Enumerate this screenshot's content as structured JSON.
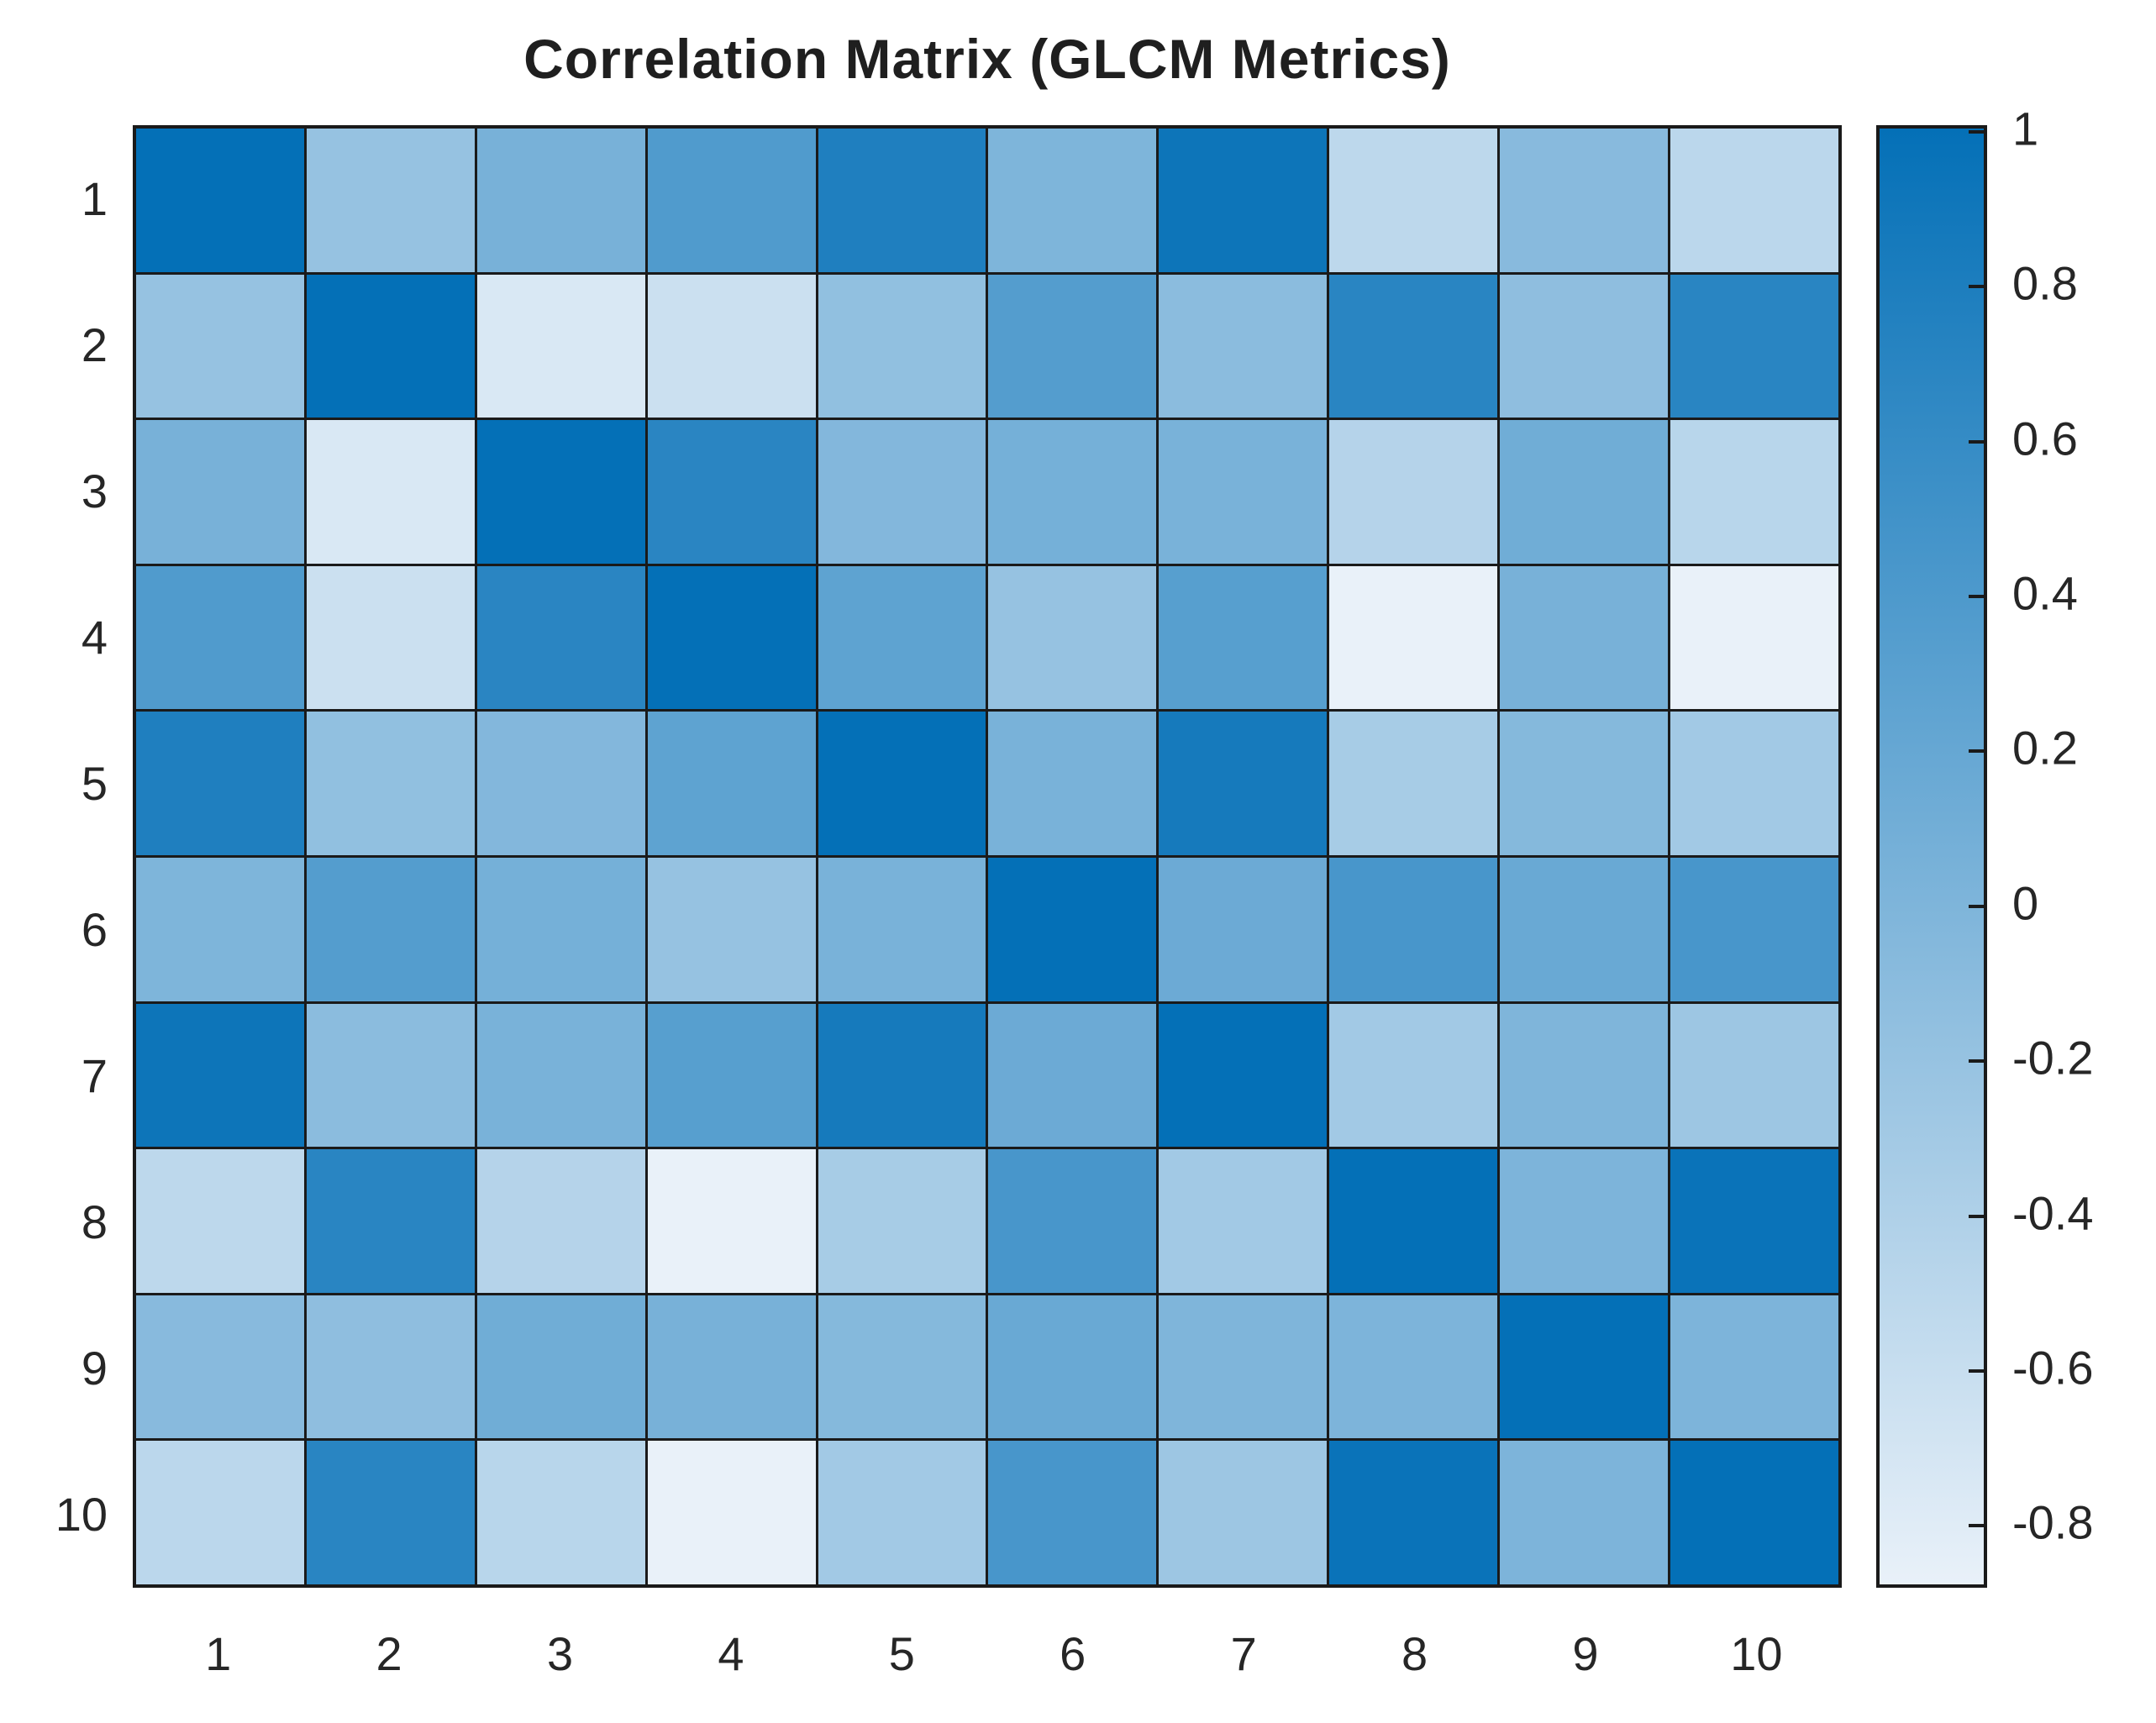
{
  "figure": {
    "background_color": "#ffffff",
    "grid_line_color": "#1a1a1a",
    "text_color": "#262626",
    "title_color": "#1f1f1f"
  },
  "chart_data": {
    "type": "heatmap",
    "title": "Correlation Matrix (GLCM Metrics)",
    "x_labels": [
      "1",
      "2",
      "3",
      "4",
      "5",
      "6",
      "7",
      "8",
      "9",
      "10"
    ],
    "y_labels": [
      "1",
      "2",
      "3",
      "4",
      "5",
      "6",
      "7",
      "8",
      "9",
      "10"
    ],
    "values": [
      [
        1.0,
        -0.2,
        0.05,
        0.38,
        0.78,
        0.0,
        0.93,
        -0.52,
        -0.08,
        -0.5
      ],
      [
        -0.2,
        1.0,
        -0.75,
        -0.63,
        -0.16,
        0.34,
        -0.11,
        0.7,
        -0.14,
        0.7
      ],
      [
        0.05,
        -0.75,
        1.0,
        0.69,
        -0.04,
        0.07,
        0.04,
        -0.45,
        0.11,
        -0.48
      ],
      [
        0.38,
        -0.63,
        0.69,
        1.0,
        0.26,
        -0.2,
        0.32,
        -0.88,
        0.05,
        -0.88
      ],
      [
        0.78,
        -0.16,
        -0.04,
        0.26,
        1.0,
        0.04,
        0.85,
        -0.34,
        -0.06,
        -0.3
      ],
      [
        0.0,
        0.34,
        0.07,
        -0.2,
        0.04,
        1.0,
        0.15,
        0.44,
        0.17,
        0.44
      ],
      [
        0.93,
        -0.11,
        0.04,
        0.32,
        0.85,
        0.15,
        1.0,
        -0.3,
        -0.01,
        -0.26
      ],
      [
        -0.52,
        0.7,
        -0.45,
        -0.88,
        -0.34,
        0.44,
        -0.3,
        1.0,
        0.01,
        0.95
      ],
      [
        -0.08,
        -0.14,
        0.11,
        0.05,
        -0.06,
        0.17,
        -0.01,
        0.01,
        1.0,
        0.01
      ],
      [
        -0.5,
        0.7,
        -0.48,
        -0.88,
        -0.3,
        0.44,
        -0.26,
        0.95,
        0.01,
        1.0
      ]
    ],
    "grid": true,
    "legend_position": "right-colorbar",
    "color_axis": {
      "min": -0.88,
      "max": 1,
      "min_color": "#e9f1f9",
      "max_color": "#0470b7",
      "tick_values": [
        1,
        0.8,
        0.6,
        0.4,
        0.2,
        0,
        -0.2,
        -0.4,
        -0.6,
        -0.8
      ],
      "tick_labels": [
        "1",
        "0.8",
        "0.6",
        "0.4",
        "0.2",
        "0",
        "-0.2",
        "-0.4",
        "-0.6",
        "-0.8"
      ]
    }
  }
}
